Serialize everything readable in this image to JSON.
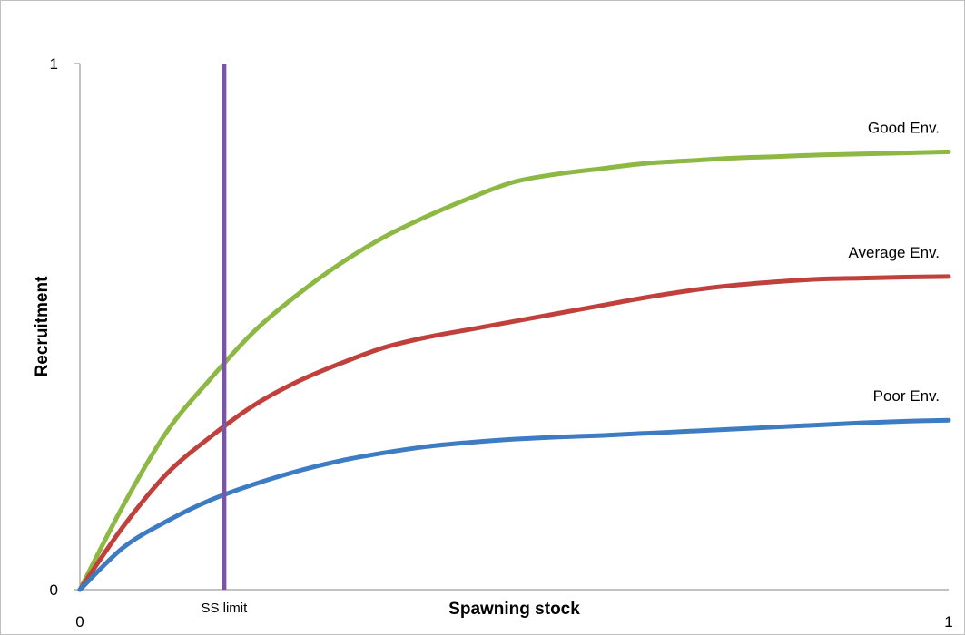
{
  "colors": {
    "good": "#8cb843",
    "average": "#c0403c",
    "poor": "#3d7cc2",
    "ss_limit": "#7b54a4",
    "axis": "#868686"
  },
  "chart_data": {
    "type": "line",
    "title": "",
    "xlabel": "Spawning stock",
    "ylabel": "Recruitment",
    "xlim": [
      0,
      1
    ],
    "ylim": [
      0,
      1
    ],
    "x_ticks": [
      "0",
      "1"
    ],
    "y_ticks": [
      "0",
      "1"
    ],
    "grid": false,
    "legend": "inline labels at right end of lines",
    "series": [
      {
        "name": "Good Env.",
        "color": "#8cb843",
        "x": [
          0,
          0.05,
          0.1,
          0.15,
          0.2,
          0.25,
          0.3,
          0.35,
          0.4,
          0.45,
          0.5,
          0.55,
          0.6,
          0.65,
          0.7,
          0.75,
          0.8,
          0.85,
          0.9,
          0.95,
          1.0
        ],
        "y": [
          0,
          0.16,
          0.3,
          0.4,
          0.49,
          0.56,
          0.62,
          0.67,
          0.71,
          0.745,
          0.775,
          0.79,
          0.8,
          0.81,
          0.815,
          0.82,
          0.823,
          0.826,
          0.828,
          0.83,
          0.832
        ]
      },
      {
        "name": "Average Env.",
        "color": "#c0403c",
        "x": [
          0,
          0.05,
          0.1,
          0.15,
          0.2,
          0.25,
          0.3,
          0.35,
          0.4,
          0.45,
          0.5,
          0.55,
          0.6,
          0.65,
          0.7,
          0.75,
          0.8,
          0.85,
          0.9,
          0.95,
          1.0
        ],
        "y": [
          0,
          0.12,
          0.22,
          0.29,
          0.35,
          0.395,
          0.43,
          0.46,
          0.48,
          0.495,
          0.51,
          0.525,
          0.54,
          0.555,
          0.568,
          0.578,
          0.585,
          0.59,
          0.592,
          0.594,
          0.595
        ]
      },
      {
        "name": "Poor Env.",
        "color": "#3d7cc2",
        "x": [
          0,
          0.05,
          0.1,
          0.15,
          0.2,
          0.25,
          0.3,
          0.35,
          0.4,
          0.45,
          0.5,
          0.55,
          0.6,
          0.65,
          0.7,
          0.75,
          0.8,
          0.85,
          0.9,
          0.95,
          1.0
        ],
        "y": [
          0,
          0.08,
          0.13,
          0.17,
          0.2,
          0.225,
          0.245,
          0.26,
          0.272,
          0.28,
          0.286,
          0.29,
          0.293,
          0.297,
          0.301,
          0.305,
          0.309,
          0.313,
          0.317,
          0.32,
          0.322
        ]
      }
    ],
    "annotations": [
      {
        "type": "vertical-line",
        "label": "SS limit",
        "x": 0.166,
        "color": "#7b54a4"
      }
    ]
  }
}
